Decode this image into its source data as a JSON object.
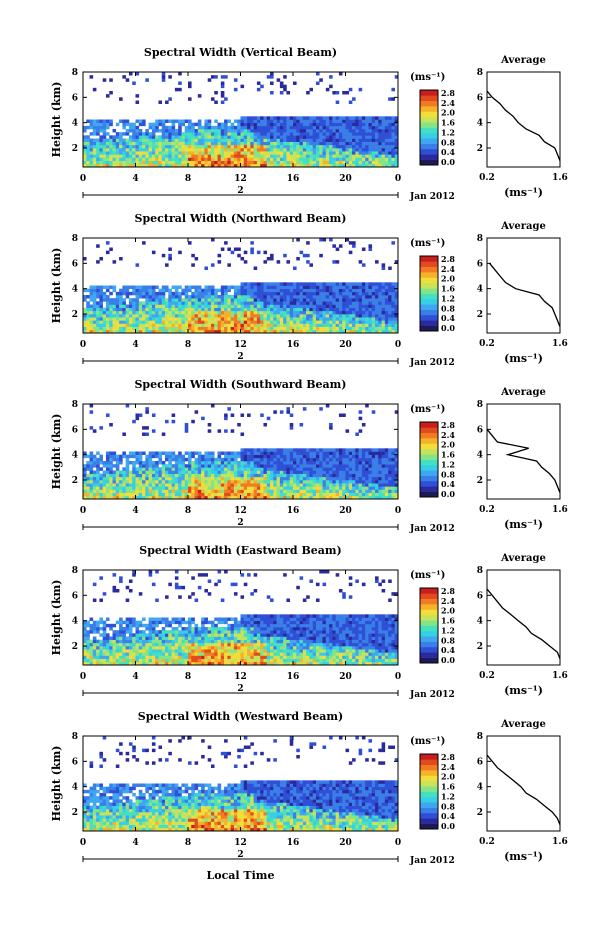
{
  "figure": {
    "date_label": "Jan 2012",
    "xlabel_bottom": "Local Time",
    "ylabel": "Height (km)",
    "colorbar_unit": "(ms⁻¹)",
    "average_title": "Average",
    "average_xlabel": "(ms⁻¹)",
    "colormap": [
      "#1e1a55",
      "#2a2a9c",
      "#2f4fd6",
      "#3a7ee8",
      "#3fa7f0",
      "#36cfe6",
      "#44e0c0",
      "#86e486",
      "#c8e25a",
      "#f2dd3a",
      "#f7b02a",
      "#f17a22",
      "#e24a1f",
      "#c81e1e"
    ],
    "colorbar_ticks": [
      "2.8",
      "2.4",
      "2.0",
      "1.6",
      "1.2",
      "0.8",
      "0.4",
      "0.0"
    ],
    "day_label": "2"
  },
  "chart_data": [
    {
      "type": "heatmap",
      "title": "Spectral Width (Vertical Beam)",
      "xlabel": "Local Time",
      "ylabel": "Height (km)",
      "x_ticks": [
        "0",
        "4",
        "8",
        "12",
        "16",
        "20",
        "0"
      ],
      "y_ticks": [
        "2",
        "4",
        "6",
        "8"
      ],
      "xlim": [
        0,
        24
      ],
      "ylim": [
        0.5,
        8
      ],
      "zlim": [
        0.0,
        2.8
      ],
      "cbar_label": "(ms⁻¹)",
      "average": {
        "title": "Average",
        "xlabel": "(ms⁻¹)",
        "x_ticks": [
          "0.2",
          "1.6"
        ],
        "xlim": [
          0.2,
          1.6
        ],
        "height": [
          1.0,
          1.5,
          2.0,
          2.5,
          3.0,
          3.5,
          4.0,
          4.5,
          5.0,
          5.5,
          6.0,
          6.5
        ],
        "value": [
          1.6,
          1.55,
          1.5,
          1.3,
          1.2,
          0.95,
          0.8,
          0.7,
          0.55,
          0.45,
          0.3,
          0.2
        ]
      }
    },
    {
      "type": "heatmap",
      "title": "Spectral Width (Northward Beam)",
      "xlabel": "Local Time",
      "ylabel": "Height (km)",
      "x_ticks": [
        "0",
        "4",
        "8",
        "12",
        "16",
        "20",
        "0"
      ],
      "y_ticks": [
        "2",
        "4",
        "6",
        "8"
      ],
      "xlim": [
        0,
        24
      ],
      "ylim": [
        0.5,
        8
      ],
      "zlim": [
        0.0,
        2.8
      ],
      "cbar_label": "(ms⁻¹)",
      "average": {
        "title": "Average",
        "xlabel": "(ms⁻¹)",
        "x_ticks": [
          "0.2",
          "1.6"
        ],
        "xlim": [
          0.2,
          1.6
        ],
        "height": [
          1.0,
          1.5,
          2.0,
          2.5,
          3.0,
          3.5,
          4.0,
          4.5,
          5.0,
          5.5,
          6.0
        ],
        "value": [
          1.6,
          1.55,
          1.5,
          1.45,
          1.3,
          1.2,
          0.75,
          0.55,
          0.45,
          0.35,
          0.25
        ]
      }
    },
    {
      "type": "heatmap",
      "title": "Spectral Width (Southward Beam)",
      "xlabel": "Local Time",
      "ylabel": "Height (km)",
      "x_ticks": [
        "0",
        "4",
        "8",
        "12",
        "16",
        "20",
        "0"
      ],
      "y_ticks": [
        "2",
        "4",
        "6",
        "8"
      ],
      "xlim": [
        0,
        24
      ],
      "ylim": [
        0.5,
        8
      ],
      "zlim": [
        0.0,
        2.8
      ],
      "cbar_label": "(ms⁻¹)",
      "average": {
        "title": "Average",
        "xlabel": "(ms⁻¹)",
        "x_ticks": [
          "0.2",
          "1.6"
        ],
        "xlim": [
          0.2,
          1.6
        ],
        "height": [
          1.0,
          1.5,
          2.0,
          2.5,
          3.0,
          3.5,
          4.0,
          4.5,
          5.0,
          5.5,
          6.0
        ],
        "value": [
          1.6,
          1.55,
          1.5,
          1.4,
          1.25,
          1.15,
          0.6,
          1.0,
          0.4,
          0.3,
          0.2
        ]
      }
    },
    {
      "type": "heatmap",
      "title": "Spectral Width (Eastward Beam)",
      "xlabel": "Local Time",
      "ylabel": "Height (km)",
      "x_ticks": [
        "0",
        "4",
        "8",
        "12",
        "16",
        "20",
        "0"
      ],
      "y_ticks": [
        "2",
        "4",
        "6",
        "8"
      ],
      "xlim": [
        0,
        24
      ],
      "ylim": [
        0.5,
        8
      ],
      "zlim": [
        0.0,
        2.8
      ],
      "cbar_label": "(ms⁻¹)",
      "average": {
        "title": "Average",
        "xlabel": "(ms⁻¹)",
        "x_ticks": [
          "0.2",
          "1.6"
        ],
        "xlim": [
          0.2,
          1.6
        ],
        "height": [
          1.0,
          1.5,
          2.0,
          2.5,
          3.0,
          3.5,
          4.0,
          4.5,
          5.0,
          5.5,
          6.0,
          6.5
        ],
        "value": [
          1.6,
          1.55,
          1.4,
          1.25,
          1.05,
          0.95,
          0.8,
          0.65,
          0.5,
          0.4,
          0.3,
          0.2
        ]
      }
    },
    {
      "type": "heatmap",
      "title": "Spectral Width (Westward Beam)",
      "xlabel": "Local Time",
      "ylabel": "Height (km)",
      "x_ticks": [
        "0",
        "4",
        "8",
        "12",
        "16",
        "20",
        "0"
      ],
      "y_ticks": [
        "2",
        "4",
        "6",
        "8"
      ],
      "xlim": [
        0,
        24
      ],
      "ylim": [
        0.5,
        8
      ],
      "zlim": [
        0.0,
        2.8
      ],
      "cbar_label": "(ms⁻¹)",
      "average": {
        "title": "Average",
        "xlabel": "(ms⁻¹)",
        "x_ticks": [
          "0.2",
          "1.6"
        ],
        "xlim": [
          0.2,
          1.6
        ],
        "height": [
          1.0,
          1.5,
          2.0,
          2.5,
          3.0,
          3.5,
          4.0,
          4.5,
          5.0,
          5.5,
          6.0,
          6.5
        ],
        "value": [
          1.6,
          1.55,
          1.45,
          1.3,
          1.15,
          0.95,
          0.85,
          0.7,
          0.55,
          0.4,
          0.3,
          0.2
        ]
      }
    }
  ]
}
